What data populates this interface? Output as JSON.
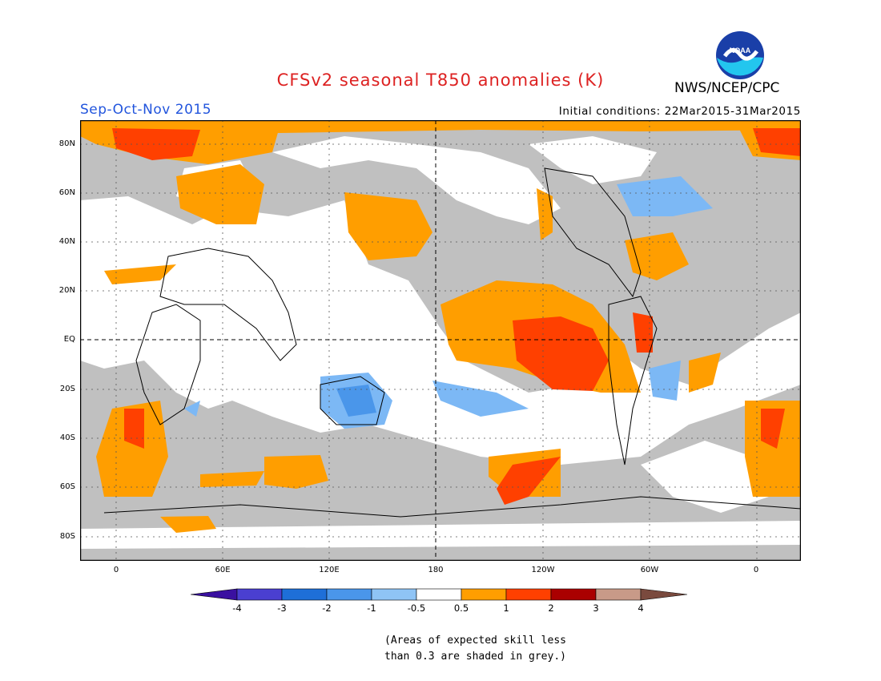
{
  "header": {
    "title": "CFSv2 seasonal T850 anomalies (K)",
    "season": "Sep-Oct-Nov 2015",
    "initial_conditions": "Initial conditions: 22Mar2015-31Mar2015",
    "agency": "NWS/NCEP/CPC",
    "logo_text": "NOAA"
  },
  "colors": {
    "title": "#dd2222",
    "season": "#2255dd",
    "grey_low_skill": "#c0c0c0",
    "warm_05_1": "#ff9e00",
    "warm_1_2": "#ff4000",
    "warm_2_3": "#aa0000",
    "cool_05": "#7cb8f5",
    "cool_1": "#4a96ea"
  },
  "map": {
    "lat_ticks": [
      "80N",
      "60N",
      "40N",
      "20N",
      "EQ",
      "20S",
      "40S",
      "60S",
      "80S"
    ],
    "lon_ticks": [
      "0",
      "60E",
      "120E",
      "180",
      "120W",
      "60W",
      "0"
    ]
  },
  "colorbar": {
    "ticks": [
      "-4",
      "-3",
      "-2",
      "-1",
      "-0.5",
      "0.5",
      "1",
      "2",
      "3",
      "4"
    ],
    "colors": [
      "#3a10a0",
      "#4a3fd0",
      "#1e6fd8",
      "#4a96ea",
      "#8fc4f5",
      "#ffffff",
      "#ff9e00",
      "#ff4000",
      "#aa0000",
      "#c89a88",
      "#7a4a3e"
    ]
  },
  "footnote": {
    "line1": "(Areas of expected skill less",
    "line2": "than 0.3 are shaded in grey.)"
  }
}
